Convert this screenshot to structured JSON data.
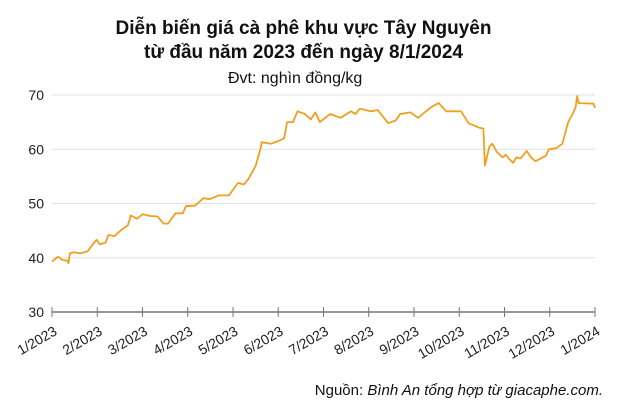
{
  "chart_data": {
    "type": "line",
    "title": "Diễn biến giá cà phê khu vực Tây Nguyên",
    "subtitle": "từ đầu năm 2023 đến ngày 8/1/2024",
    "unit": "Đvt: nghìn đồng/kg",
    "source_prefix": "Nguồn: ",
    "source_text": "Bình An tổng hợp từ giacaphe.com.",
    "ylim": [
      30,
      70
    ],
    "yticks": [
      30,
      40,
      50,
      60,
      70
    ],
    "xticks": [
      "1/2023",
      "2/2023",
      "3/2023",
      "4/2023",
      "5/2023",
      "6/2023",
      "7/2023",
      "8/2023",
      "9/2023",
      "10/2023",
      "11/2023",
      "12/2023",
      "1/2024"
    ],
    "grid": "horizontal",
    "line_color": "#f0a020",
    "series": [
      {
        "x": [
          "2023-01-01",
          "2023-01-05",
          "2023-01-08",
          "2023-01-11",
          "2023-01-12",
          "2023-01-13",
          "2023-01-16",
          "2023-01-20",
          "2023-01-25",
          "2023-01-29",
          "2023-01-31",
          "2023-02-02",
          "2023-02-06",
          "2023-02-08",
          "2023-02-12",
          "2023-02-16",
          "2023-02-21",
          "2023-02-23",
          "2023-02-27",
          "2023-03-03",
          "2023-03-08",
          "2023-03-13",
          "2023-03-17",
          "2023-03-20",
          "2023-03-25",
          "2023-03-30",
          "2023-04-01",
          "2023-04-07",
          "2023-04-13",
          "2023-04-17",
          "2023-04-23",
          "2023-04-30",
          "2023-05-06",
          "2023-05-10",
          "2023-05-13",
          "2023-05-18",
          "2023-05-21",
          "2023-05-22",
          "2023-05-28",
          "2023-06-02",
          "2023-06-06",
          "2023-06-08",
          "2023-06-12",
          "2023-06-15",
          "2023-06-20",
          "2023-06-24",
          "2023-06-27",
          "2023-06-30",
          "2023-07-07",
          "2023-07-14",
          "2023-07-21",
          "2023-07-24",
          "2023-07-27",
          "2023-08-03",
          "2023-08-08",
          "2023-08-15",
          "2023-08-20",
          "2023-08-23",
          "2023-08-30",
          "2023-09-04",
          "2023-09-13",
          "2023-09-18",
          "2023-09-23",
          "2023-10-03",
          "2023-10-08",
          "2023-10-15",
          "2023-10-18",
          "2023-10-19",
          "2023-10-22",
          "2023-10-24",
          "2023-10-27",
          "2023-10-31",
          "2023-11-02",
          "2023-11-04",
          "2023-11-07",
          "2023-11-09",
          "2023-11-12",
          "2023-11-16",
          "2023-11-19",
          "2023-11-22",
          "2023-11-29",
          "2023-12-01",
          "2023-12-06",
          "2023-12-10",
          "2023-12-14",
          "2023-12-17",
          "2023-12-19",
          "2023-12-20",
          "2023-12-21",
          "2023-12-31",
          "2024-01-01"
        ],
        "y": [
          39.3,
          40.2,
          39.6,
          39.5,
          39.0,
          40.8,
          41.0,
          40.8,
          41.2,
          42.7,
          43.3,
          42.5,
          42.8,
          44.2,
          44.0,
          45.0,
          46.0,
          47.8,
          47.2,
          48.0,
          47.7,
          47.6,
          46.3,
          46.3,
          48.2,
          48.2,
          49.5,
          49.6,
          51.0,
          50.8,
          51.5,
          51.5,
          53.8,
          53.5,
          54.5,
          57.0,
          60.0,
          61.3,
          61.0,
          61.5,
          62.0,
          65.0,
          65.0,
          67.0,
          66.5,
          65.5,
          66.8,
          65.0,
          66.5,
          65.8,
          67.0,
          66.5,
          67.5,
          67.0,
          67.2,
          64.8,
          65.3,
          66.5,
          66.8,
          65.8,
          67.8,
          68.5,
          67.0,
          67.0,
          64.8,
          64.0,
          63.8,
          57.0,
          60.5,
          61.0,
          59.5,
          58.5,
          59.0,
          58.3,
          57.5,
          58.5,
          58.3,
          59.7,
          58.5,
          57.8,
          58.8,
          60.0,
          60.2,
          61.0,
          65.0,
          66.5,
          67.8,
          69.8,
          68.5,
          68.4,
          67.6
        ]
      }
    ]
  }
}
